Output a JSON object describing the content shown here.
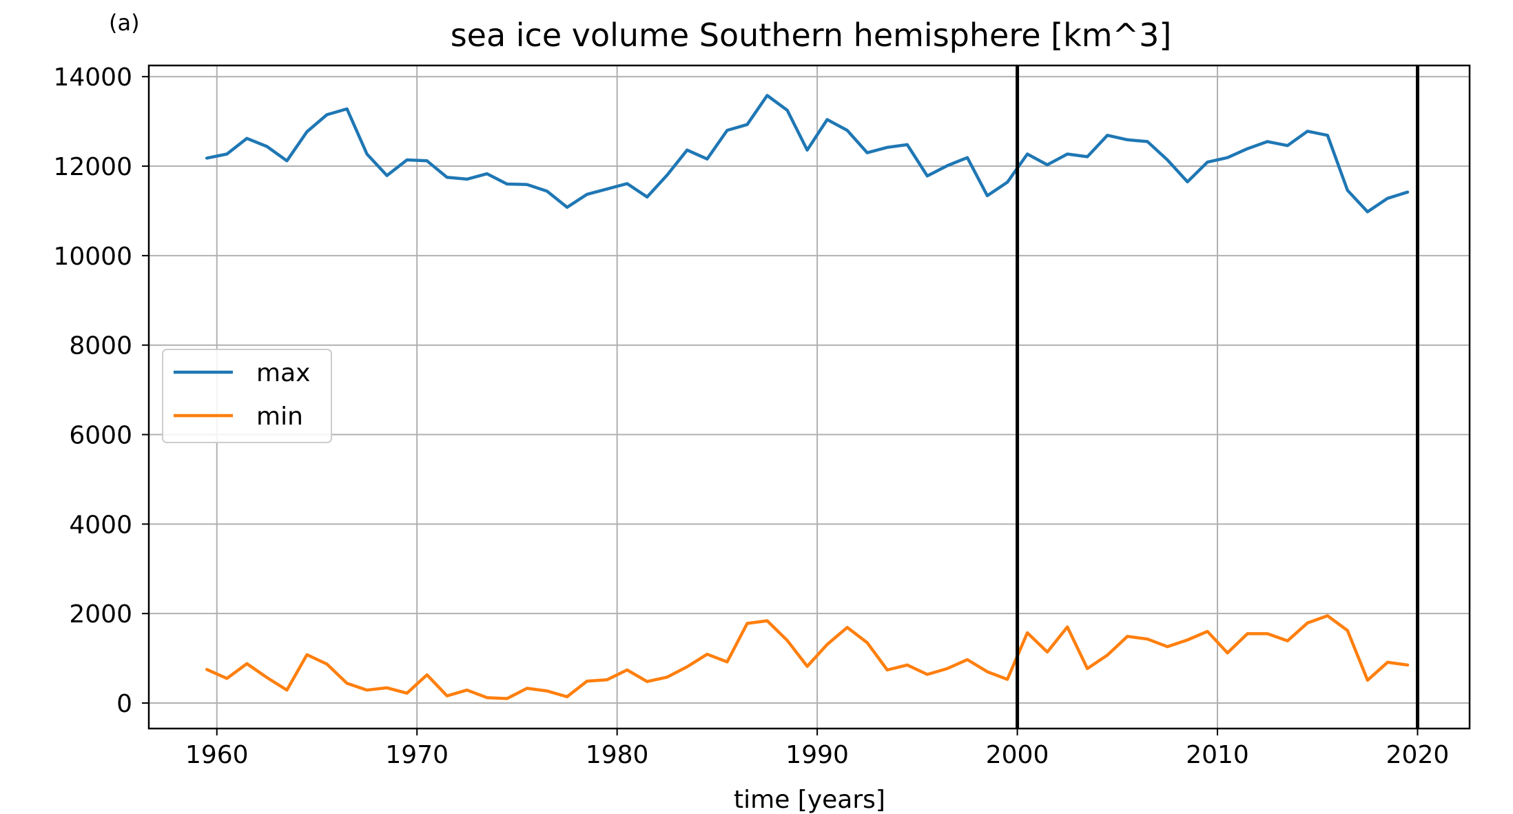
{
  "panel_label": "(a)",
  "chart_data": {
    "type": "line",
    "title": "sea ice volume Southern hemisphere [km^3]",
    "xlabel": "time [years]",
    "ylabel": "",
    "xlim": [
      1956.6,
      2022.6
    ],
    "ylim": [
      -570,
      14250
    ],
    "xticks": [
      1960,
      1970,
      1980,
      1990,
      2000,
      2010,
      2020
    ],
    "yticks": [
      0,
      2000,
      4000,
      6000,
      8000,
      10000,
      12000,
      14000
    ],
    "grid": true,
    "legend_position": "center-left",
    "vlines": [
      2000,
      2020
    ],
    "x": [
      1959.5,
      1960.5,
      1961.5,
      1962.5,
      1963.5,
      1964.5,
      1965.5,
      1966.5,
      1967.5,
      1968.5,
      1969.5,
      1970.5,
      1971.5,
      1972.5,
      1973.5,
      1974.5,
      1975.5,
      1976.5,
      1977.5,
      1978.5,
      1979.5,
      1980.5,
      1981.5,
      1982.5,
      1983.5,
      1984.5,
      1985.5,
      1986.5,
      1987.5,
      1988.5,
      1989.5,
      1990.5,
      1991.5,
      1992.5,
      1993.5,
      1994.5,
      1995.5,
      1996.5,
      1997.5,
      1998.5,
      1999.5,
      2000.5,
      2001.5,
      2002.5,
      2003.5,
      2004.5,
      2005.5,
      2006.5,
      2007.5,
      2008.5,
      2009.5,
      2010.5,
      2011.5,
      2012.5,
      2013.5,
      2014.5,
      2015.5,
      2016.5,
      2017.5,
      2018.5,
      2019.5
    ],
    "series": [
      {
        "name": "max",
        "color": "#1f77b4",
        "values": [
          12180,
          12270,
          12620,
          12440,
          12120,
          12770,
          13150,
          13280,
          12270,
          11790,
          12140,
          12120,
          11750,
          11710,
          11830,
          11600,
          11590,
          11440,
          11080,
          11370,
          11490,
          11610,
          11310,
          11800,
          12360,
          12160,
          12800,
          12930,
          13580,
          13250,
          12360,
          13040,
          12800,
          12300,
          12420,
          12480,
          11780,
          12010,
          12190,
          11340,
          11640,
          12270,
          12030,
          12270,
          12210,
          12690,
          12590,
          12550,
          12140,
          11650,
          12090,
          12190,
          12390,
          12550,
          12460,
          12780,
          12690,
          11460,
          10980,
          11280,
          11420
        ]
      },
      {
        "name": "min",
        "color": "#ff7f0e",
        "values": [
          750,
          550,
          880,
          570,
          290,
          1080,
          870,
          440,
          290,
          340,
          220,
          630,
          160,
          290,
          120,
          100,
          330,
          270,
          140,
          490,
          520,
          740,
          480,
          580,
          810,
          1090,
          920,
          1780,
          1840,
          1400,
          820,
          1310,
          1690,
          1350,
          740,
          850,
          640,
          770,
          970,
          700,
          530,
          1570,
          1140,
          1700,
          770,
          1070,
          1490,
          1430,
          1260,
          1410,
          1600,
          1120,
          1550,
          1550,
          1390,
          1790,
          1950,
          1620,
          510,
          910,
          850
        ]
      }
    ]
  }
}
